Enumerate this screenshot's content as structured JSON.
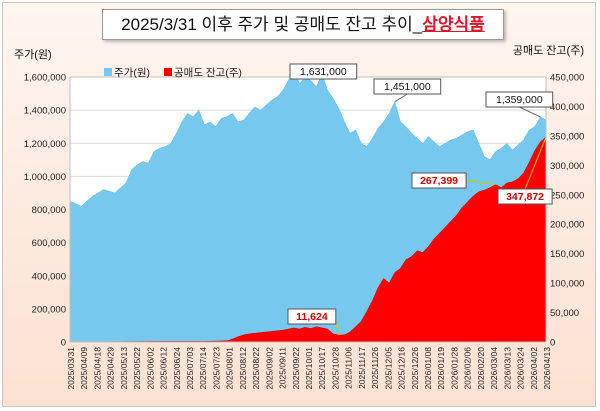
{
  "title": {
    "main": "2025/3/31 이후 주가 및 공매도 잔고 추이_",
    "highlight": "삼양식품"
  },
  "chart_data": {
    "type": "area",
    "title": "2025/3/31 이후 주가 및 공매도 잔고 추이_삼양식품",
    "y_left": {
      "label": "주가(원)",
      "range": [
        0,
        1600000
      ],
      "ticks": [
        "0",
        "200,000",
        "400,000",
        "600,000",
        "800,000",
        "1,000,000",
        "1,200,000",
        "1,400,000",
        "1,600,000"
      ]
    },
    "y_right": {
      "label": "공매도 잔고(주)",
      "range": [
        0,
        450000
      ],
      "ticks": [
        "0",
        "50,000",
        "100,000",
        "150,000",
        "200,000",
        "250,000",
        "300,000",
        "350,000",
        "400,000",
        "450,000"
      ]
    },
    "x_ticks": [
      "2025/03/31",
      "2025/04/09",
      "2025/04/18",
      "2025/04/29",
      "2025/05/13",
      "2025/05/22",
      "2025/06/02",
      "2025/06/12",
      "2025/06/24",
      "2025/07/03",
      "2025/07/14",
      "2025/07/23",
      "2025/08/01",
      "2025/08/12",
      "2025/08/22",
      "2025/09/02",
      "2025/09/11",
      "2025/09/22",
      "2025/10/01",
      "2025/10/17",
      "2025/10/28",
      "2025/11/06",
      "2025/11/17",
      "2025/11/26",
      "2025/12/05",
      "2025/12/16",
      "2025/12/26",
      "2026/01/08",
      "2026/01/19",
      "2026/01/28",
      "2026/02/06",
      "2026/02/20",
      "2026/03/04",
      "2026/03/13",
      "2026/03/24",
      "2026/04/02",
      "2026/04/13"
    ],
    "legend": {
      "placement": "top-left",
      "entries": [
        "주가(원)",
        "공매도 잔고(주)"
      ]
    },
    "grid": true,
    "series": [
      {
        "name": "주가(원)",
        "axis": "left",
        "color": "#76c8ef",
        "points": [
          [
            0,
            850000
          ],
          [
            2,
            820000
          ],
          [
            4,
            880000
          ],
          [
            6,
            920000
          ],
          [
            8,
            900000
          ],
          [
            10,
            960000
          ],
          [
            11,
            1040000
          ],
          [
            12,
            1070000
          ],
          [
            13,
            1090000
          ],
          [
            14,
            1080000
          ],
          [
            15,
            1150000
          ],
          [
            16,
            1170000
          ],
          [
            17,
            1180000
          ],
          [
            18,
            1200000
          ],
          [
            19,
            1260000
          ],
          [
            20,
            1330000
          ],
          [
            21,
            1380000
          ],
          [
            22,
            1360000
          ],
          [
            23,
            1400000
          ],
          [
            24,
            1310000
          ],
          [
            25,
            1330000
          ],
          [
            26,
            1300000
          ],
          [
            27,
            1350000
          ],
          [
            28,
            1360000
          ],
          [
            29,
            1380000
          ],
          [
            30,
            1330000
          ],
          [
            31,
            1340000
          ],
          [
            32,
            1380000
          ],
          [
            33,
            1420000
          ],
          [
            34,
            1400000
          ],
          [
            35,
            1430000
          ],
          [
            36,
            1460000
          ],
          [
            37,
            1480000
          ],
          [
            38,
            1520000
          ],
          [
            39,
            1580000
          ],
          [
            40,
            1631000
          ],
          [
            41,
            1560000
          ],
          [
            42,
            1600000
          ],
          [
            43,
            1580000
          ],
          [
            44,
            1540000
          ],
          [
            45,
            1620000
          ],
          [
            46,
            1520000
          ],
          [
            47,
            1470000
          ],
          [
            48,
            1410000
          ],
          [
            49,
            1330000
          ],
          [
            50,
            1260000
          ],
          [
            51,
            1280000
          ],
          [
            52,
            1200000
          ],
          [
            53,
            1180000
          ],
          [
            54,
            1230000
          ],
          [
            55,
            1290000
          ],
          [
            56,
            1330000
          ],
          [
            57,
            1380000
          ],
          [
            58,
            1451000
          ],
          [
            59,
            1330000
          ],
          [
            60,
            1300000
          ],
          [
            61,
            1260000
          ],
          [
            62,
            1230000
          ],
          [
            63,
            1200000
          ],
          [
            64,
            1240000
          ],
          [
            65,
            1210000
          ],
          [
            66,
            1180000
          ],
          [
            67,
            1200000
          ],
          [
            68,
            1220000
          ],
          [
            69,
            1230000
          ],
          [
            70,
            1250000
          ],
          [
            71,
            1270000
          ],
          [
            72,
            1280000
          ],
          [
            73,
            1200000
          ],
          [
            74,
            1120000
          ],
          [
            75,
            1100000
          ],
          [
            76,
            1150000
          ],
          [
            77,
            1170000
          ],
          [
            78,
            1200000
          ],
          [
            79,
            1160000
          ],
          [
            80,
            1190000
          ],
          [
            81,
            1220000
          ],
          [
            82,
            1280000
          ],
          [
            83,
            1300000
          ],
          [
            84,
            1359000
          ],
          [
            85,
            1340000
          ]
        ]
      },
      {
        "name": "공매도 잔고(주)",
        "axis": "right",
        "color": "#ff0000",
        "points": [
          [
            0,
            200
          ],
          [
            8,
            500
          ],
          [
            16,
            1000
          ],
          [
            24,
            1000
          ],
          [
            28,
            2000
          ],
          [
            29,
            5000
          ],
          [
            30,
            9000
          ],
          [
            31,
            12000
          ],
          [
            32,
            14000
          ],
          [
            33,
            15000
          ],
          [
            34,
            16000
          ],
          [
            35,
            17000
          ],
          [
            36,
            18000
          ],
          [
            37,
            19000
          ],
          [
            38,
            20000
          ],
          [
            39,
            22000
          ],
          [
            40,
            24000
          ],
          [
            41,
            22000
          ],
          [
            42,
            25000
          ],
          [
            43,
            23000
          ],
          [
            44,
            26000
          ],
          [
            45,
            24000
          ],
          [
            46,
            22000
          ],
          [
            47,
            14000
          ],
          [
            48,
            11624
          ],
          [
            49,
            12000
          ],
          [
            50,
            17000
          ],
          [
            51,
            26000
          ],
          [
            52,
            35000
          ],
          [
            53,
            52000
          ],
          [
            54,
            70000
          ],
          [
            55,
            92000
          ],
          [
            56,
            108000
          ],
          [
            57,
            100000
          ],
          [
            58,
            118000
          ],
          [
            59,
            125000
          ],
          [
            60,
            140000
          ],
          [
            61,
            145000
          ],
          [
            62,
            155000
          ],
          [
            63,
            152000
          ],
          [
            64,
            162000
          ],
          [
            65,
            175000
          ],
          [
            66,
            185000
          ],
          [
            67,
            195000
          ],
          [
            68,
            205000
          ],
          [
            69,
            215000
          ],
          [
            70,
            228000
          ],
          [
            71,
            238000
          ],
          [
            72,
            248000
          ],
          [
            73,
            255000
          ],
          [
            74,
            258000
          ],
          [
            75,
            262000
          ],
          [
            76,
            267399
          ],
          [
            77,
            262000
          ],
          [
            78,
            270000
          ],
          [
            79,
            272000
          ],
          [
            80,
            277000
          ],
          [
            81,
            287000
          ],
          [
            82,
            305000
          ],
          [
            83,
            325000
          ],
          [
            84,
            340000
          ],
          [
            85,
            347872
          ]
        ]
      }
    ],
    "annotations": [
      {
        "text": "1,631,000",
        "series": "주가(원)",
        "x": 40,
        "y": 1631000
      },
      {
        "text": "1,451,000",
        "series": "주가(원)",
        "x": 58,
        "y": 1451000
      },
      {
        "text": "1,359,000",
        "series": "주가(원)",
        "x": 84,
        "y": 1359000
      },
      {
        "text": "11,624",
        "series": "공매도 잔고(주)",
        "x": 48,
        "y": 11624
      },
      {
        "text": "267,399",
        "series": "공매도 잔고(주)",
        "x": 76,
        "y": 267399
      },
      {
        "text": "347,872",
        "series": "공매도 잔고(주)",
        "x": 85,
        "y": 347872
      }
    ]
  }
}
